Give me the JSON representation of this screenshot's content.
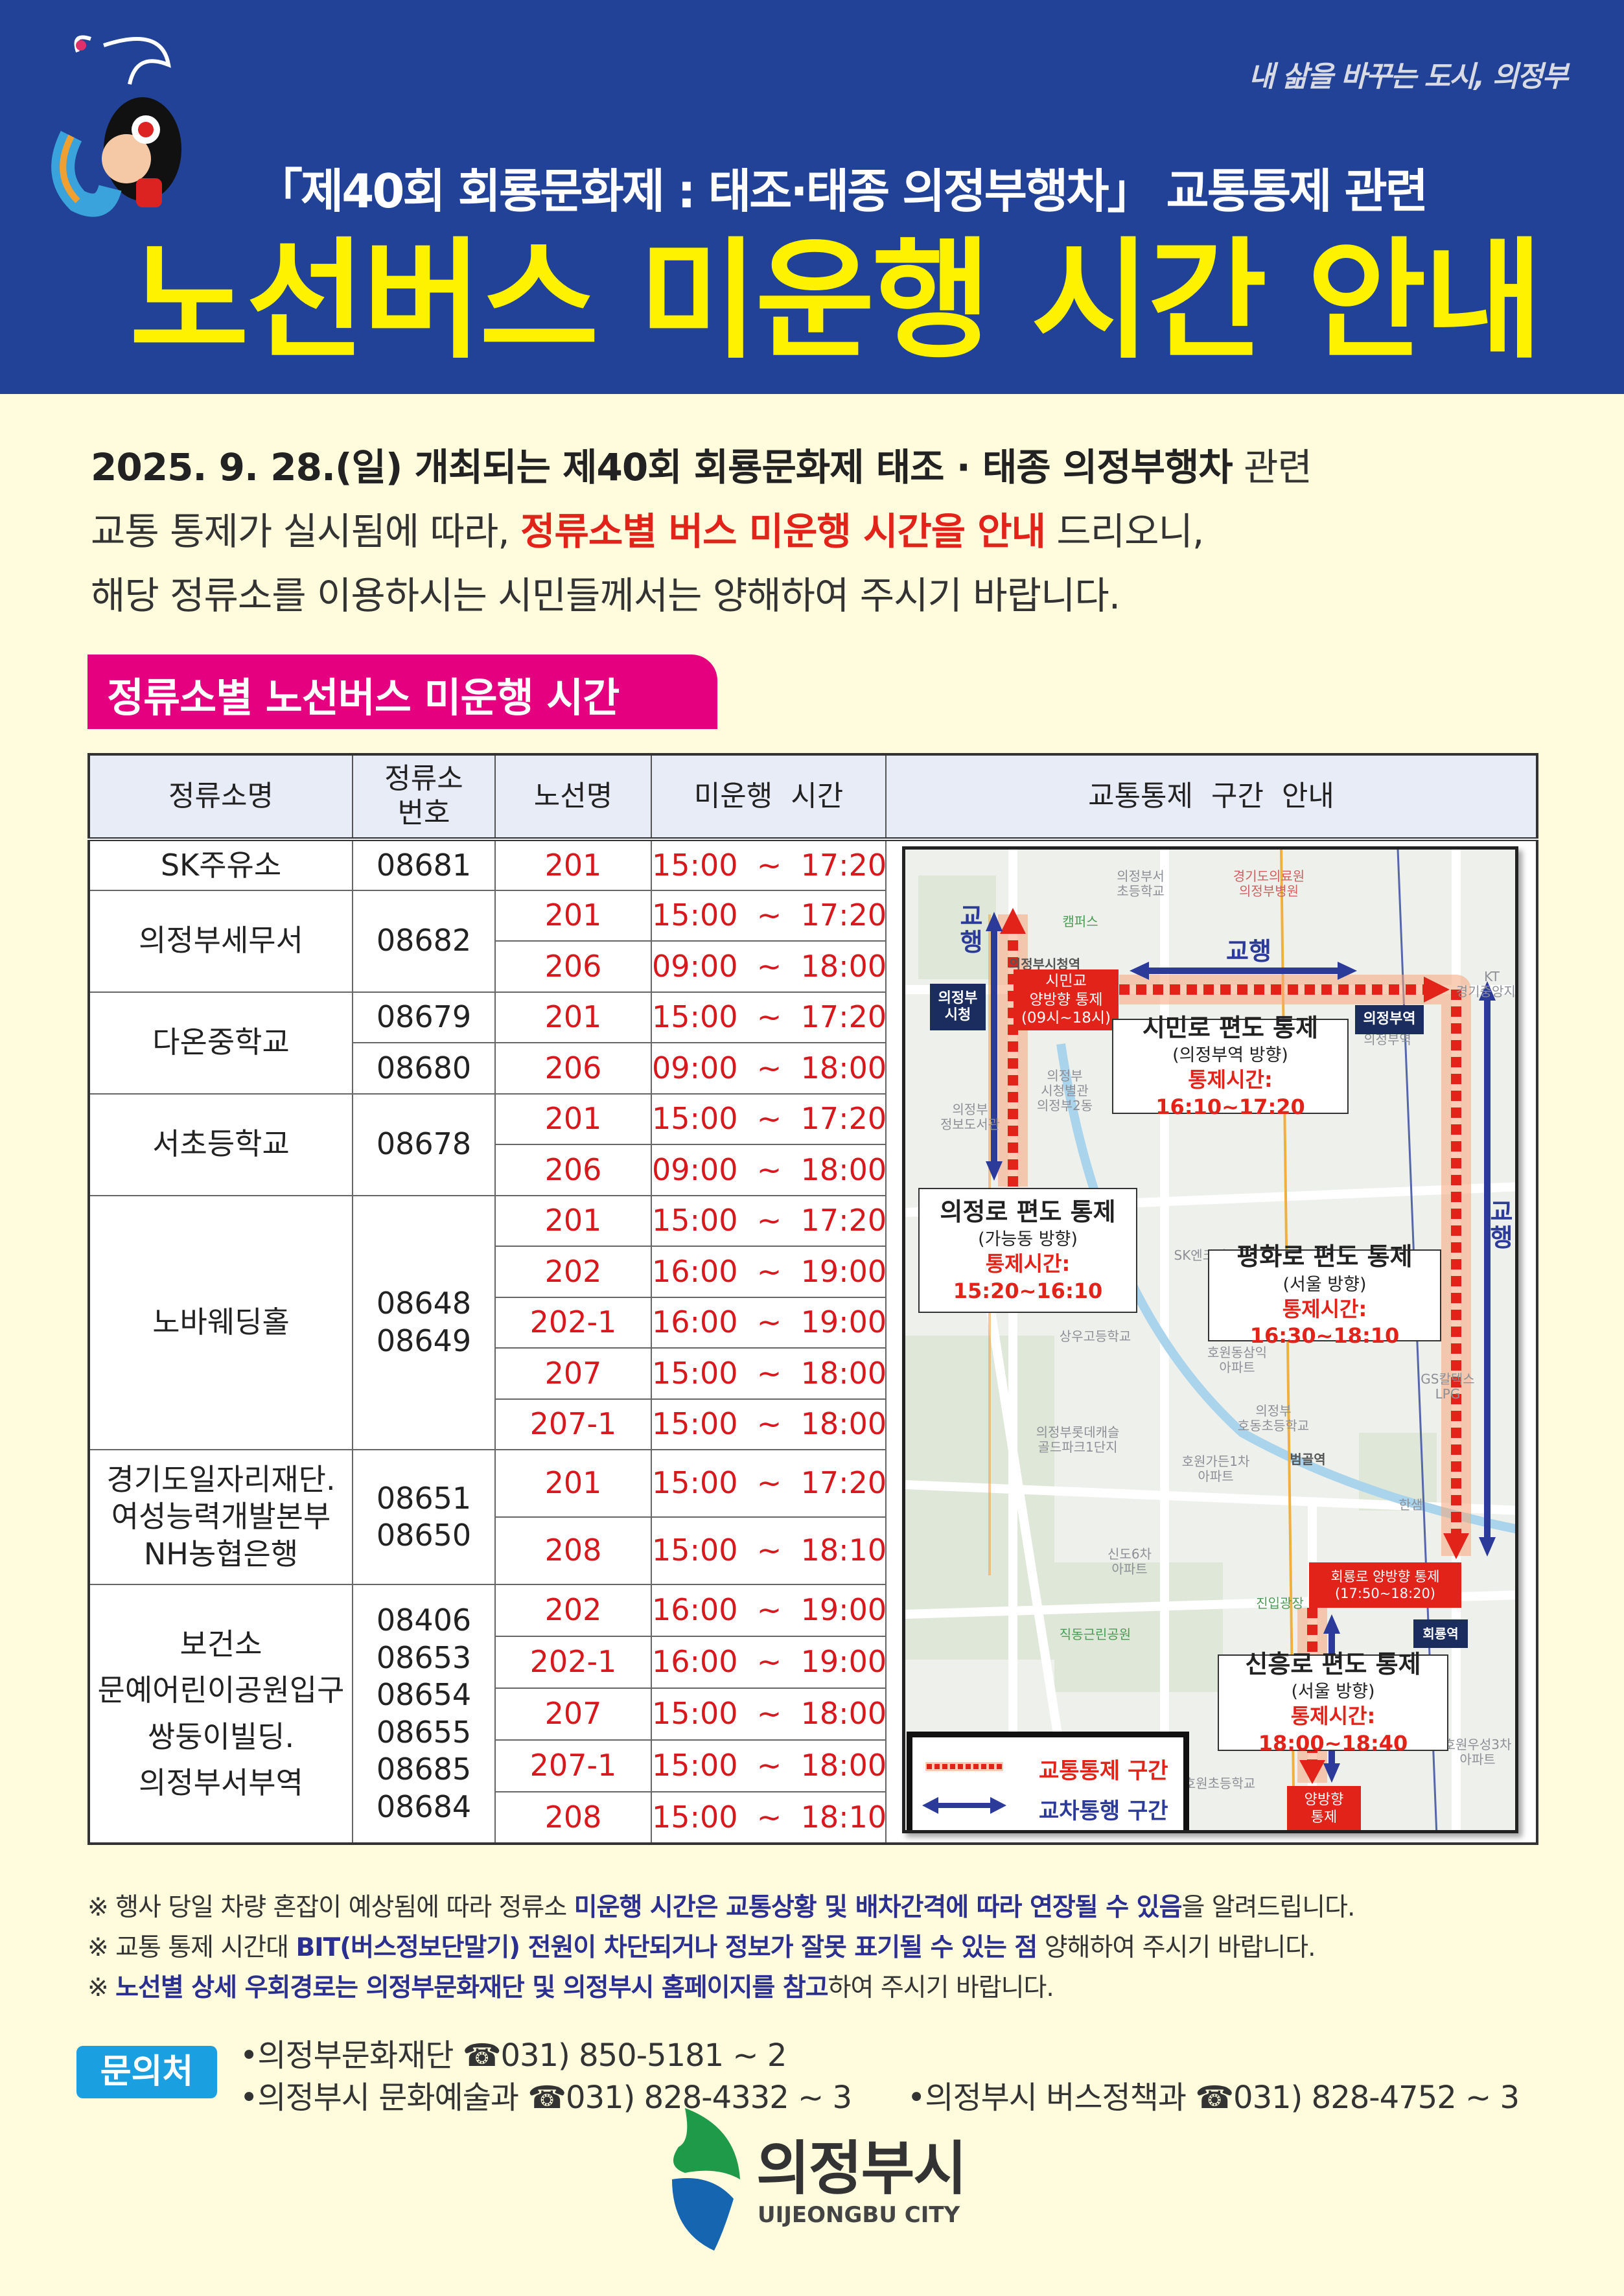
{
  "header": {
    "slogan": "내 삶을 바꾸는 도시, 의정부",
    "subtitle": "「제40회 회룡문화제 : 태조·태종 의정부행차」 교통통제 관련",
    "title": "노선버스 미운행 시간 안내",
    "background_color": "#214296",
    "title_color": "#fff200"
  },
  "intro": {
    "line1_bold": "2025.  9.  28.(일) 개최되는 제40회 회룡문화제 태조 · 태종 의정부행차",
    "line1_rest": " 관련",
    "line2_pre": "교통 통제가 실시됨에 따라, ",
    "line2_emph": "정류소별 버스 미운행 시간을 안내",
    "line2_post": " 드리오니,",
    "line3": "해당 정류소를 이용하시는 시민들께서는 양해하여 주시기 바랍니다."
  },
  "section_tab": "정류소별 노선버스 미운행 시간",
  "table": {
    "headers": [
      "정류소명",
      "정류소\n번호",
      "노선명",
      "미운행  시간",
      "교통통제  구간  안내"
    ],
    "groups": [
      {
        "stop": [
          "SK주유소"
        ],
        "numbers_per_row": true,
        "numbers": [
          "08681"
        ],
        "routes": [
          {
            "route": "201",
            "time": "15:00  ~  17:20"
          }
        ]
      },
      {
        "stop": [
          "의정부세무서"
        ],
        "numbers": [
          "08682"
        ],
        "routes": [
          {
            "route": "201",
            "time": "15:00  ~  17:20"
          },
          {
            "route": "206",
            "time": "09:00  ~  18:00"
          }
        ]
      },
      {
        "stop": [
          "다온중학교"
        ],
        "numbers_per_row": true,
        "numbers": [
          "08679",
          "08680"
        ],
        "routes": [
          {
            "route": "201",
            "time": "15:00  ~  17:20"
          },
          {
            "route": "206",
            "time": "09:00  ~  18:00"
          }
        ]
      },
      {
        "stop": [
          "서초등학교"
        ],
        "numbers": [
          "08678"
        ],
        "routes": [
          {
            "route": "201",
            "time": "15:00  ~  17:20"
          },
          {
            "route": "206",
            "time": "09:00  ~  18:00"
          }
        ]
      },
      {
        "stop": [
          "노바웨딩홀"
        ],
        "numbers": [
          "08648",
          "08649"
        ],
        "routes": [
          {
            "route": "201",
            "time": "15:00  ~  17:20"
          },
          {
            "route": "202",
            "time": "16:00  ~  19:00"
          },
          {
            "route": "202-1",
            "time": "16:00  ~  19:00"
          },
          {
            "route": "207",
            "time": "15:00  ~  18:00"
          },
          {
            "route": "207-1",
            "time": "15:00  ~  18:00"
          }
        ]
      },
      {
        "stop": [
          "경기도일자리재단.",
          "여성능력개발본부",
          "NH농협은행"
        ],
        "numbers": [
          "08651",
          "08650"
        ],
        "tall": true,
        "routes": [
          {
            "route": "201",
            "time": "15:00  ~  17:20"
          },
          {
            "route": "208",
            "time": "15:00  ~  18:10"
          }
        ]
      },
      {
        "stop": [
          "보건소",
          "문예어린이공원입구",
          "쌍둥이빌딩.",
          "의정부서부역"
        ],
        "numbers": [
          "08406",
          "08653",
          "08654",
          "08655",
          "08685",
          "08684"
        ],
        "routes": [
          {
            "route": "202",
            "time": "16:00  ~  19:00"
          },
          {
            "route": "202-1",
            "time": "16:00  ~  19:00"
          },
          {
            "route": "207",
            "time": "15:00  ~  18:00"
          },
          {
            "route": "207-1",
            "time": "15:00  ~  18:00"
          },
          {
            "route": "208",
            "time": "15:00  ~  18:10"
          }
        ]
      }
    ]
  },
  "map": {
    "places": [
      "의정부서\n초등학교",
      "경기도의료원\n의정부병원",
      "캠퍼스",
      "의정부시청역",
      "의정부\n시청별관",
      "의정부2동",
      "의정부\n정보도서관",
      "의정부역",
      "KT\n경기중앙지사",
      "SK엔크린",
      "상우고등학교",
      "호원동삼익\n아파트",
      "의정부\n호동초등학교",
      "의정부롯데캐슬\n골드파크1단지",
      "호원가든1차\n아파트",
      "범골역",
      "한샘",
      "신도6차\n아파트",
      "진입광장",
      "직동근린공원",
      "호원초등학교",
      "호원우성3차\n아파트",
      "GS칼텍스\nLPG"
    ],
    "two_way_label": "교행",
    "city_hall": "의정부\n시청",
    "uijeongbu_station": "의정부역",
    "hoeryong_station": "회룡역",
    "simingyo": {
      "l1": "시민교",
      "l2": "양방향 통제",
      "l3": "(09시~18시)"
    },
    "simin_ro": {
      "title": "시민로  편도  통제",
      "dir": "(의정부역 방향)",
      "time": "통제시간: 16:10~17:20"
    },
    "uijeong_ro": {
      "title": "의정로  편도  통제",
      "dir": "(가능동 방향)",
      "time1": "통제시간:",
      "time2": "15:20~16:10"
    },
    "pyeonghwa_ro": {
      "title": "평화로  편도  통제",
      "dir": "(서울 방향)",
      "time": "통제시간: 16:30~18:10"
    },
    "hoeryong_ro": {
      "l1": "회룡로 양방향 통제",
      "l2": "(17:50~18:20)"
    },
    "sinheung_ro": {
      "title": "신흥로  편도  통제",
      "dir": "(서울 방향)",
      "time": "통제시간: 18:00~18:40"
    },
    "both_ways": {
      "l1": "양방향",
      "l2": "통제"
    },
    "legend": {
      "control": "교통통제 구간",
      "alternate": "교차통행 구간"
    },
    "control_color": "#e2231a",
    "alternate_color": "#2c3b9a"
  },
  "notes": [
    {
      "pre": "※ 행사 당일 차량 혼잡이 예상됨에 따라 정류소 ",
      "em": "미운행 시간은 교통상황 및 배차간격에 따라 연장될 수 있음",
      "post": "을 알려드립니다."
    },
    {
      "pre": "※ 교통 통제 시간대 ",
      "em": "BIT(버스정보단말기) 전원이 차단되거나 정보가 잘못 표기될 수 있는 점",
      "post": " 양해하여 주시기 바랍니다."
    },
    {
      "pre": "※ ",
      "em": "노선별 상세 우회경로는 의정부문화재단 및 의정부시 홈페이지를 참고",
      "post": "하여 주시기 바랍니다."
    }
  ],
  "contact": {
    "label": "문의처",
    "line1": "•의정부문화재단 ☎031) 850-5181 ~ 2",
    "line2a": "•의정부시 문화예술과 ☎031) 828-4332 ~ 3",
    "line2b": "•의정부시 버스정책과 ☎031) 828-4752 ~ 3"
  },
  "logo": {
    "name_ko": "의정부시",
    "name_en": "UIJEONGBU CITY"
  }
}
